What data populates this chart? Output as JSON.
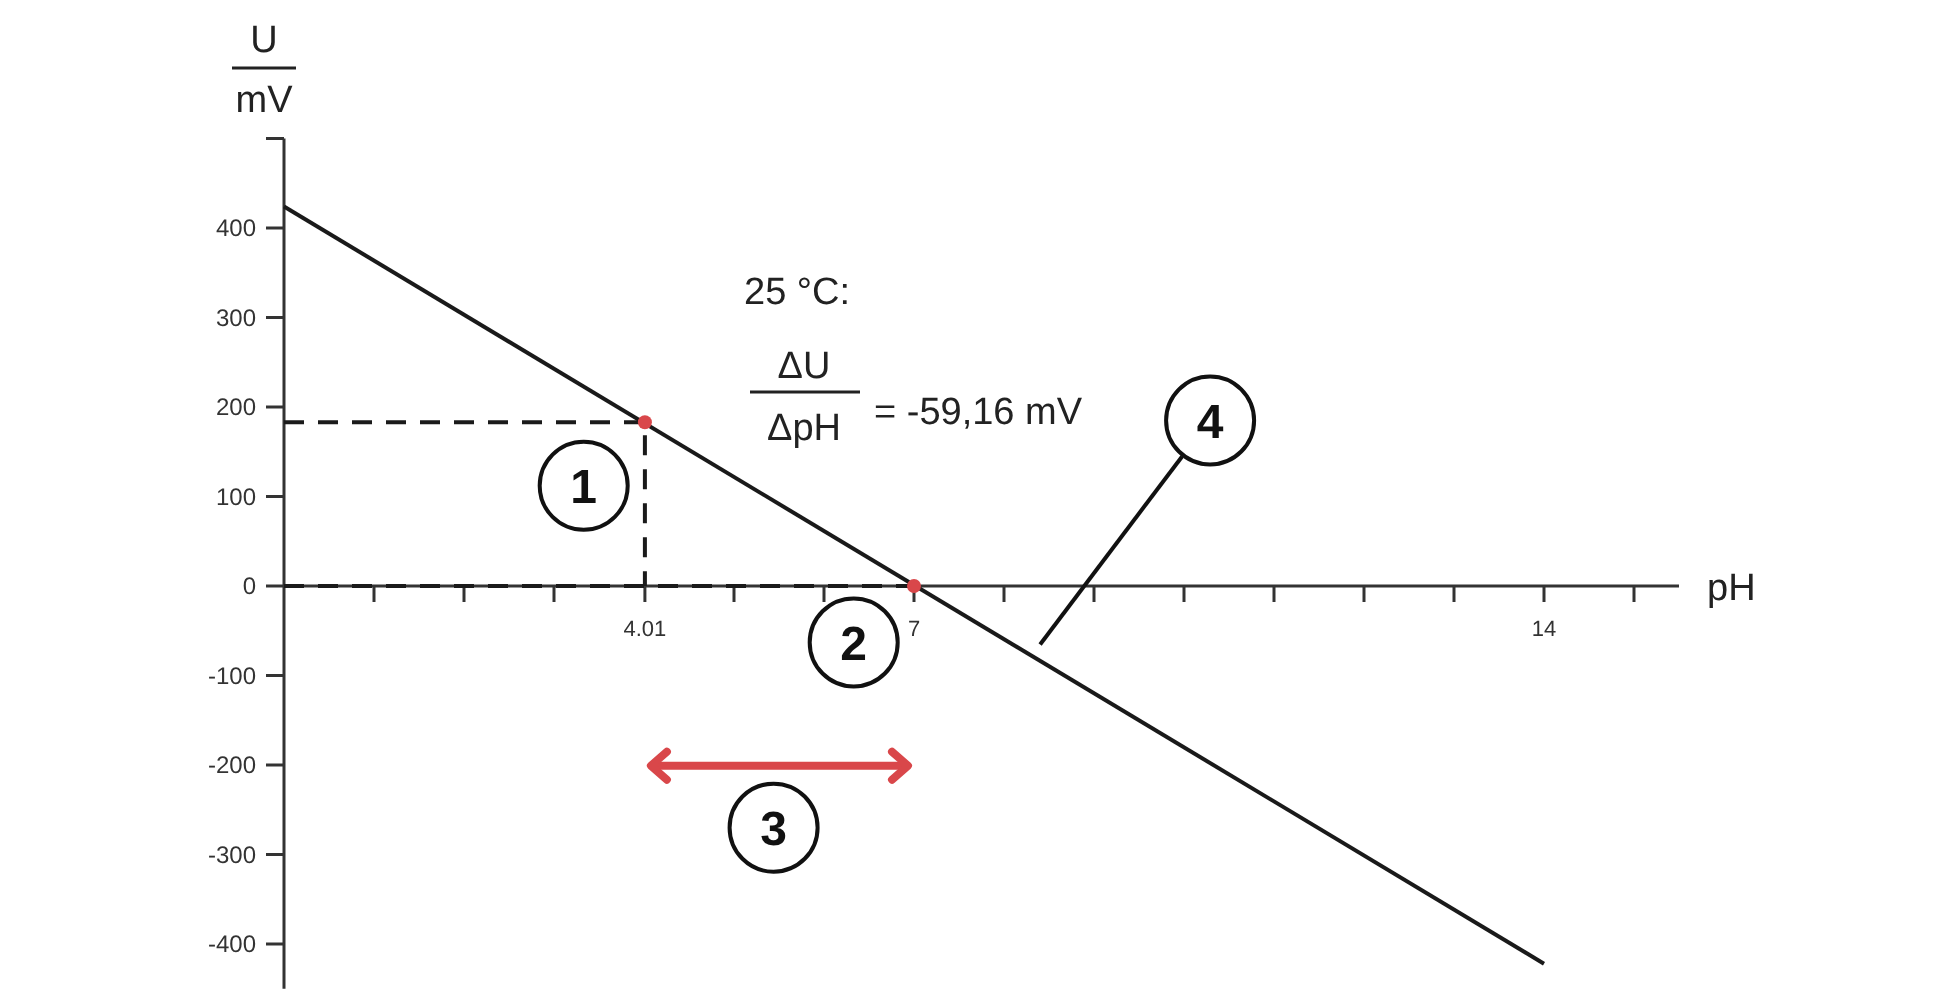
{
  "chart_data": {
    "type": "line",
    "xlabel": "pH",
    "ylabel": "U",
    "xlim": [
      0,
      15.5
    ],
    "ylim": [
      -450,
      500
    ],
    "xticks": [
      {
        "value": 1,
        "label": null
      },
      {
        "value": 2,
        "label": null
      },
      {
        "value": 3,
        "label": null
      },
      {
        "value": 4.01,
        "label": "4.01"
      },
      {
        "value": 5,
        "label": null
      },
      {
        "value": 6,
        "label": null
      },
      7,
      {
        "value": 8,
        "label": null
      },
      {
        "value": 9,
        "label": null
      },
      {
        "value": 10,
        "label": null
      },
      {
        "value": 11,
        "label": null
      },
      {
        "value": 12,
        "label": null
      },
      {
        "value": 13,
        "label": null
      },
      14,
      {
        "value": 15,
        "label": null
      }
    ],
    "yticks": [
      -400,
      -300,
      -200,
      -100,
      0,
      100,
      200,
      300,
      400,
      {
        "value": 500,
        "label": null
      }
    ],
    "series": [
      {
        "type": "line",
        "color": "#1a1a1a",
        "line_style": "solid",
        "x": [
          0,
          14
        ],
        "values": [
          424,
          -422
        ]
      },
      {
        "type": "line",
        "color": "#1a1a1a",
        "line_style": "dashed",
        "x": [
          0,
          4.01,
          4.01
        ],
        "values": [
          183,
          183,
          0
        ]
      },
      {
        "type": "line",
        "color": "#1a1a1a",
        "line_style": "dashed",
        "x": [
          0,
          7
        ],
        "values": [
          0,
          0
        ]
      },
      {
        "type": "scatter",
        "color": "#d9474a",
        "marker": "circle",
        "x": [
          4.01,
          7
        ],
        "values": [
          183,
          0
        ]
      }
    ],
    "annotations": [
      "25 °C:",
      "ΔU",
      "ΔpH",
      "= -59,16 mV",
      "mV",
      {
        "text": "1",
        "x": 3.33,
        "y": 112
      },
      {
        "text": "2",
        "x": 6.33,
        "y": -63
      },
      {
        "text": "3",
        "x": 5.44,
        "y": -270
      },
      {
        "text": "4",
        "x": 10.29,
        "y": 185
      }
    ]
  }
}
